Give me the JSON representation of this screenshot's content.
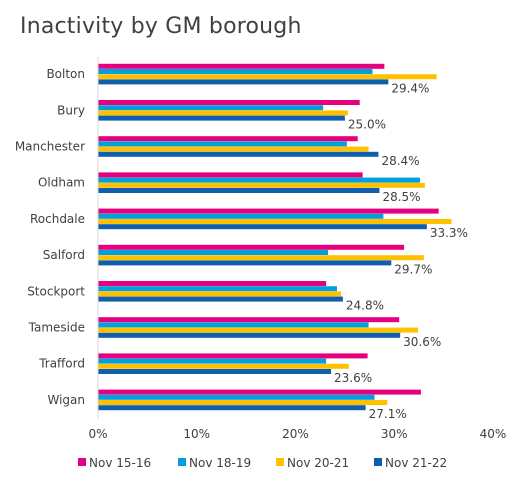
{
  "chart_data": {
    "type": "bar",
    "orientation": "horizontal",
    "title": "Inactivity by GM borough",
    "categories": [
      "Bolton",
      "Bury",
      "Manchester",
      "Oldham",
      "Rochdale",
      "Salford",
      "Stockport",
      "Tameside",
      "Trafford",
      "Wigan"
    ],
    "series": [
      {
        "name": "Nov 15-16",
        "color": "#E6007E",
        "values": [
          29.0,
          26.5,
          26.3,
          26.8,
          34.5,
          31.0,
          23.1,
          30.5,
          27.3,
          32.7
        ]
      },
      {
        "name": "Nov 18-19",
        "color": "#00A0DF",
        "values": [
          27.8,
          22.8,
          25.2,
          32.6,
          28.9,
          23.3,
          24.2,
          27.4,
          23.1,
          28.0
        ]
      },
      {
        "name": "Nov 20-21",
        "color": "#FFC000",
        "values": [
          34.3,
          25.3,
          27.4,
          33.1,
          35.8,
          33.0,
          24.6,
          32.4,
          25.4,
          29.3
        ]
      },
      {
        "name": "Nov 21-22",
        "color": "#0F5FAF",
        "values": [
          29.4,
          25.0,
          28.4,
          28.5,
          33.3,
          29.7,
          24.8,
          30.6,
          23.6,
          27.1
        ],
        "data_labels": [
          "29.4%",
          "25.0%",
          "28.4%",
          "28.5%",
          "33.3%",
          "29.7%",
          "24.8%",
          "30.6%",
          "23.6%",
          "27.1%"
        ]
      }
    ],
    "xlim": [
      0,
      40
    ],
    "xticks": [
      0,
      10,
      20,
      30,
      40
    ],
    "xtick_labels": [
      "0%",
      "10%",
      "20%",
      "30%",
      "40%"
    ],
    "grid": false,
    "legend_position": "bottom"
  }
}
